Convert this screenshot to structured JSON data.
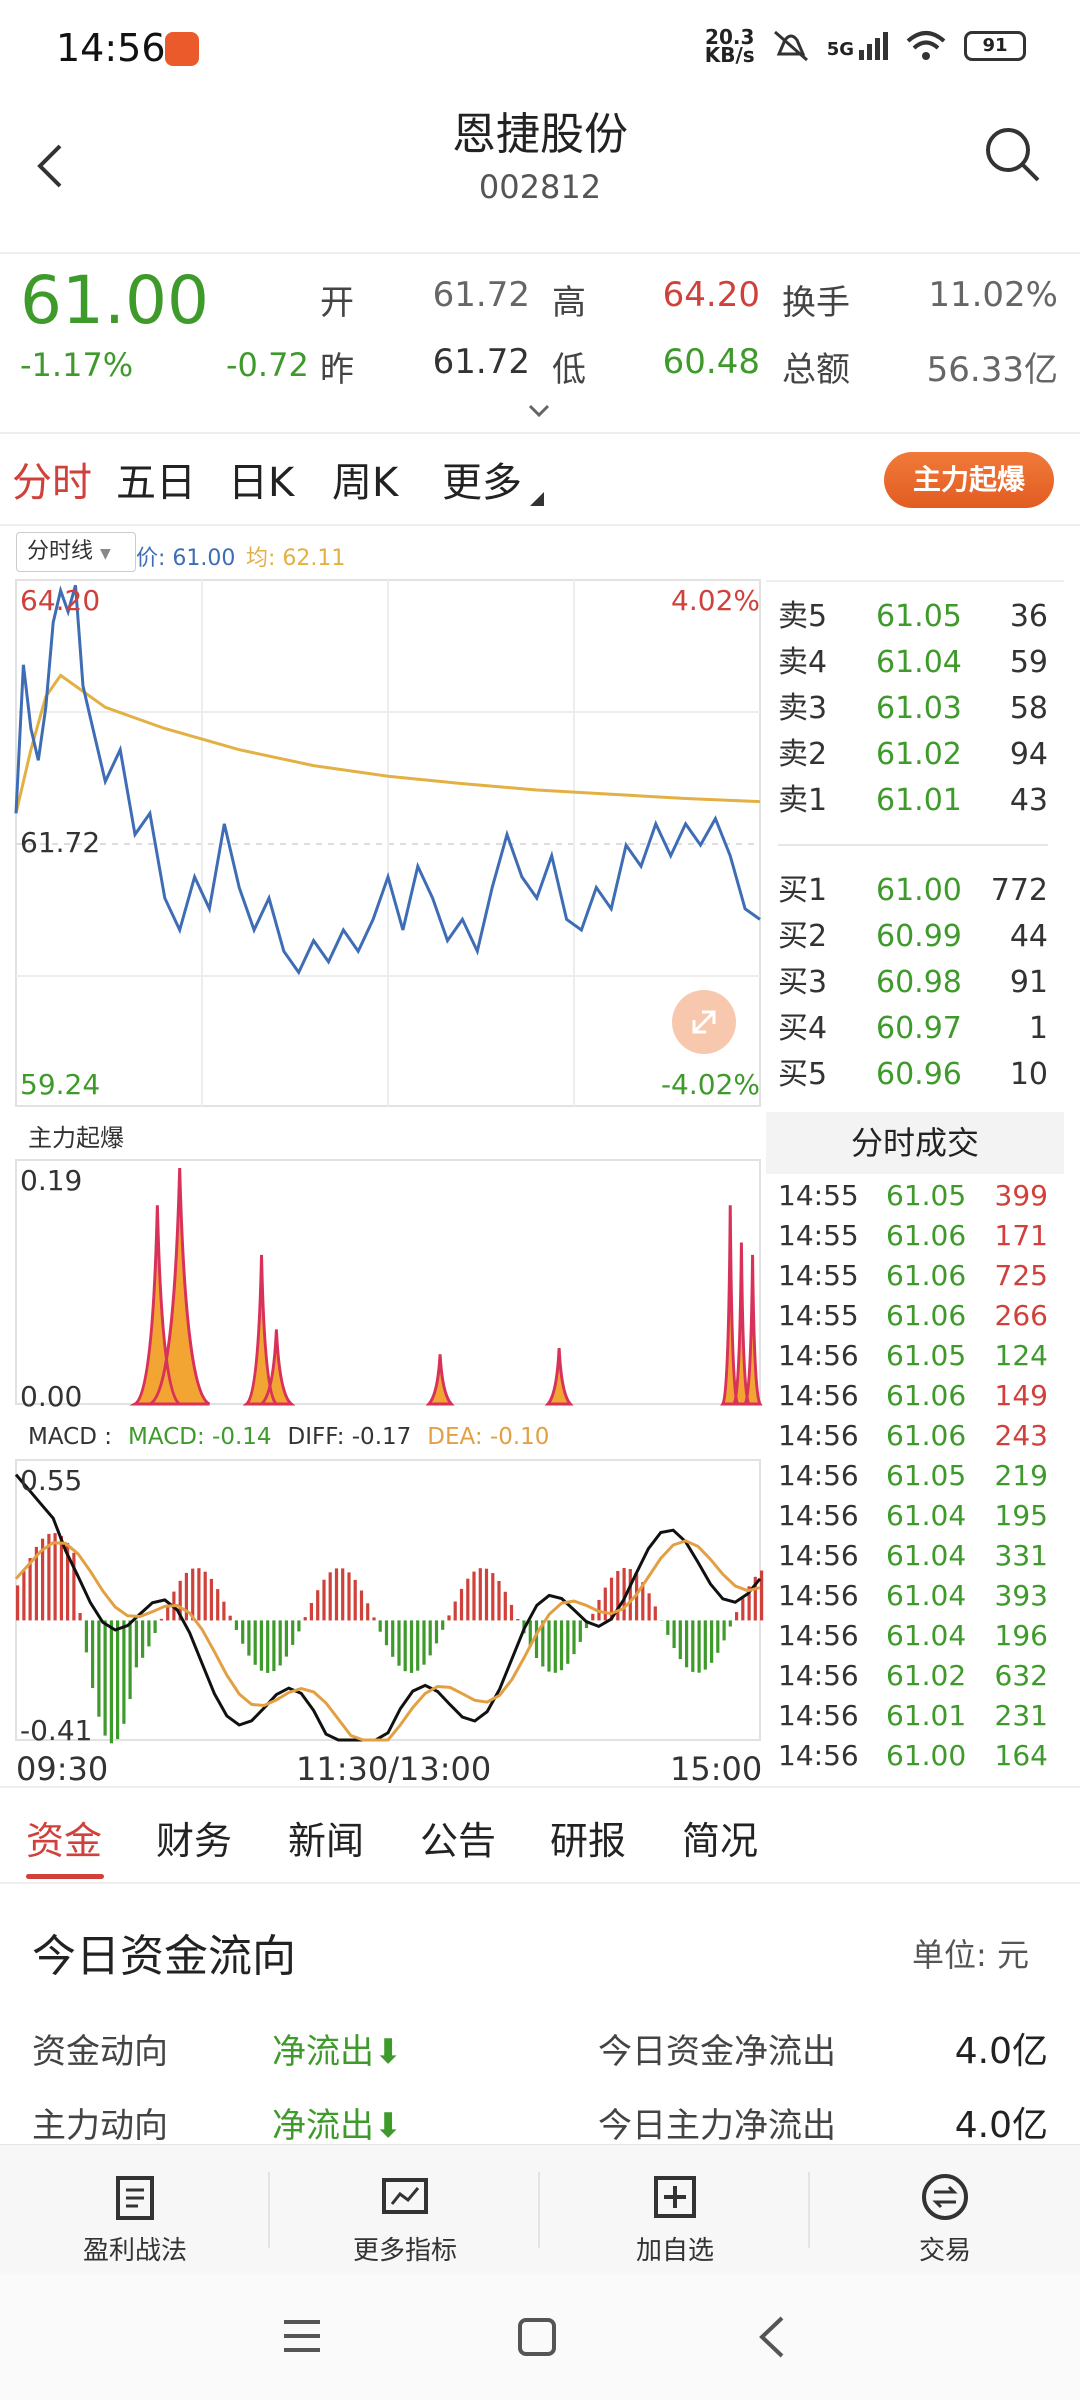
{
  "status": {
    "time": "14:56",
    "net_speed": "20.3",
    "net_unit": "KB/s",
    "signal": "5G",
    "battery": "91"
  },
  "header": {
    "title": "恩捷股份",
    "code": "002812"
  },
  "quote": {
    "price": "61.00",
    "change_pct": "-1.17%",
    "change": "-0.72",
    "open_label": "开",
    "open": "61.72",
    "high_label": "高",
    "high": "64.20",
    "prev_label": "昨",
    "prev": "61.72",
    "low_label": "低",
    "low": "60.48",
    "turnover_label": "换手",
    "turnover": "11.02%",
    "amount_label": "总额",
    "amount": "56.33亿"
  },
  "period_tabs": [
    "分时",
    "五日",
    "日K",
    "周K",
    "更多"
  ],
  "zl_button": "主力起爆",
  "chart": {
    "selector": "分时线",
    "legend_price": "价: 61.00",
    "legend_avg": "均: 62.11",
    "max_price": "64.20",
    "max_pct": "4.02%",
    "mid_price": "61.72",
    "min_price": "59.24",
    "min_pct": "-4.02%",
    "indicator_title": "主力起爆",
    "indicator_max": "0.19",
    "indicator_min": "0.00",
    "macd_label": "MACD :",
    "macd": "MACD: -0.14",
    "diff": "DIFF: -0.17",
    "dea": "DEA: -0.10",
    "macd_max": "0.55",
    "macd_min": "-0.41",
    "time_start": "09:30",
    "time_mid": "11:30/13:00",
    "time_end": "15:00"
  },
  "order_book": {
    "asks": [
      {
        "name": "卖5",
        "price": "61.05",
        "vol": "36"
      },
      {
        "name": "卖4",
        "price": "61.04",
        "vol": "59"
      },
      {
        "name": "卖3",
        "price": "61.03",
        "vol": "58"
      },
      {
        "name": "卖2",
        "price": "61.02",
        "vol": "94"
      },
      {
        "name": "卖1",
        "price": "61.01",
        "vol": "43"
      }
    ],
    "bids": [
      {
        "name": "买1",
        "price": "61.00",
        "vol": "772"
      },
      {
        "name": "买2",
        "price": "60.99",
        "vol": "44"
      },
      {
        "name": "买3",
        "price": "60.98",
        "vol": "91"
      },
      {
        "name": "买4",
        "price": "60.97",
        "vol": "1"
      },
      {
        "name": "买5",
        "price": "60.96",
        "vol": "10"
      }
    ]
  },
  "trades": {
    "title": "分时成交",
    "rows": [
      {
        "time": "14:55",
        "price": "61.05",
        "vol": "399",
        "dir": "red"
      },
      {
        "time": "14:55",
        "price": "61.06",
        "vol": "171",
        "dir": "red"
      },
      {
        "time": "14:55",
        "price": "61.06",
        "vol": "725",
        "dir": "red"
      },
      {
        "time": "14:55",
        "price": "61.06",
        "vol": "266",
        "dir": "red"
      },
      {
        "time": "14:56",
        "price": "61.05",
        "vol": "124",
        "dir": "green"
      },
      {
        "time": "14:56",
        "price": "61.06",
        "vol": "149",
        "dir": "red"
      },
      {
        "time": "14:56",
        "price": "61.06",
        "vol": "243",
        "dir": "red"
      },
      {
        "time": "14:56",
        "price": "61.05",
        "vol": "219",
        "dir": "green"
      },
      {
        "time": "14:56",
        "price": "61.04",
        "vol": "195",
        "dir": "green"
      },
      {
        "time": "14:56",
        "price": "61.04",
        "vol": "331",
        "dir": "green"
      },
      {
        "time": "14:56",
        "price": "61.04",
        "vol": "393",
        "dir": "green"
      },
      {
        "time": "14:56",
        "price": "61.04",
        "vol": "196",
        "dir": "green"
      },
      {
        "time": "14:56",
        "price": "61.02",
        "vol": "632",
        "dir": "green"
      },
      {
        "time": "14:56",
        "price": "61.01",
        "vol": "231",
        "dir": "green"
      },
      {
        "time": "14:56",
        "price": "61.00",
        "vol": "164",
        "dir": "green"
      }
    ]
  },
  "bottom_tabs": [
    "资金",
    "财务",
    "新闻",
    "公告",
    "研报",
    "简况"
  ],
  "fund_flow": {
    "title": "今日资金流向",
    "unit": "单位: 元",
    "rows": [
      {
        "label": "资金动向",
        "value": "净流出",
        "label2": "今日资金净流出",
        "amount": "4.0亿"
      },
      {
        "label": "主力动向",
        "value": "净流出",
        "label2": "今日主力净流出",
        "amount": "4.0亿"
      }
    ]
  },
  "toolbar": [
    "盈利战法",
    "更多指标",
    "加自选",
    "交易"
  ],
  "colors": {
    "up": "#d0413b",
    "down": "#3f9a2c",
    "price_line": "#3e6db5",
    "avg_line": "#e3b043",
    "accent": "#e25c22"
  }
}
